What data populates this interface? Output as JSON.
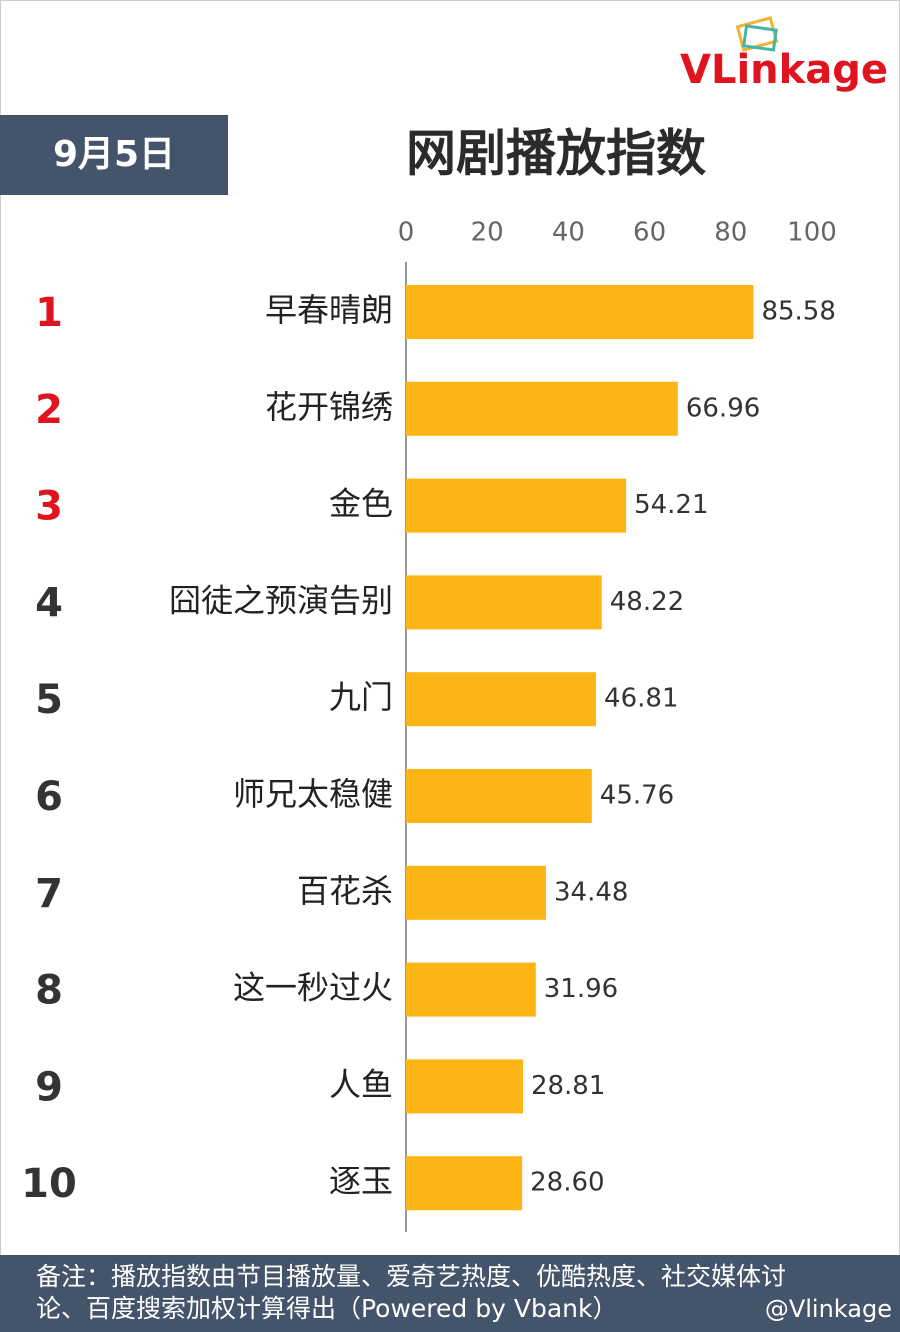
{
  "chart_data": {
    "type": "bar",
    "orientation": "horizontal",
    "title": "网剧播放指数",
    "date": "9月5日",
    "logo": "VLinkage",
    "ranks": [
      1,
      2,
      3,
      4,
      5,
      6,
      7,
      8,
      9,
      10
    ],
    "rank_colors": [
      "#e0141e",
      "#e0141e",
      "#e0141e",
      "#333333",
      "#333333",
      "#333333",
      "#333333",
      "#333333",
      "#333333",
      "#333333"
    ],
    "categories": [
      "早春晴朗",
      "花开锦绣",
      "金色",
      "囧徒之预演告别",
      "九门",
      "师兄太稳健",
      "百花杀",
      "这一秒过火",
      "人鱼",
      "逐玉"
    ],
    "values": [
      85.58,
      66.96,
      54.21,
      48.22,
      46.81,
      45.76,
      34.48,
      31.96,
      28.81,
      28.6
    ],
    "value_labels": [
      "85.58",
      "66.96",
      "54.21",
      "48.22",
      "46.81",
      "45.76",
      "34.48",
      "31.96",
      "28.81",
      "28.60"
    ],
    "color": "#fdb515",
    "xlim": [
      0,
      100
    ],
    "xticks": [
      0,
      20,
      40,
      60,
      80,
      100
    ],
    "note_lines": [
      "备注：播放指数由节目播放量、爱奇艺热度、优酷热度、社交媒体讨",
      "论、百度搜索加权计算得出（Powered by Vbank）"
    ],
    "watermark": "@Vlinkage"
  }
}
